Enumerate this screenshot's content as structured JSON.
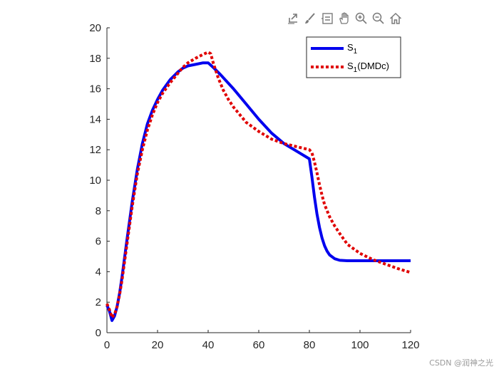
{
  "toolbar": {
    "buttons": [
      {
        "name": "export-icon"
      },
      {
        "name": "brush-icon"
      },
      {
        "name": "data-tips-icon"
      },
      {
        "name": "pan-icon"
      },
      {
        "name": "zoom-in-icon"
      },
      {
        "name": "zoom-out-icon"
      },
      {
        "name": "home-icon"
      }
    ]
  },
  "watermark": "CSDN @润神之光",
  "chart_data": {
    "type": "line",
    "title": "",
    "xlabel": "",
    "ylabel": "",
    "xlim": [
      0,
      120
    ],
    "ylim": [
      0,
      20
    ],
    "xticks": [
      "0",
      "20",
      "40",
      "60",
      "80",
      "100",
      "120"
    ],
    "yticks": [
      "0",
      "2",
      "4",
      "6",
      "8",
      "10",
      "12",
      "14",
      "16",
      "18",
      "20"
    ],
    "grid": false,
    "legend_position": "top-right",
    "series": [
      {
        "name": "S",
        "subscript": "1",
        "suffix": "",
        "color": "#0000ee",
        "style": "solid",
        "x": [
          0,
          1,
          2,
          3,
          4,
          5,
          6,
          8,
          10,
          12,
          14,
          16,
          18,
          20,
          22,
          25,
          28,
          30,
          32,
          35,
          38,
          40,
          42,
          45,
          50,
          55,
          60,
          65,
          70,
          75,
          80,
          81,
          82,
          83,
          84,
          85,
          86,
          87,
          88,
          90,
          92,
          95,
          100,
          105,
          110,
          115,
          120
        ],
        "y": [
          1.8,
          1.4,
          0.8,
          1.1,
          1.7,
          2.6,
          3.7,
          6.2,
          8.6,
          10.7,
          12.4,
          13.7,
          14.6,
          15.3,
          15.9,
          16.6,
          17.1,
          17.35,
          17.5,
          17.6,
          17.7,
          17.7,
          17.4,
          16.9,
          16.0,
          15.0,
          14.0,
          13.1,
          12.4,
          11.9,
          11.4,
          10.2,
          8.9,
          7.8,
          6.9,
          6.2,
          5.7,
          5.35,
          5.1,
          4.85,
          4.75,
          4.72,
          4.72,
          4.72,
          4.72,
          4.72,
          4.72
        ]
      },
      {
        "name": "S",
        "subscript": "1",
        "suffix": "(DMDc)",
        "color": "#e00000",
        "style": "dotted",
        "x": [
          0,
          1,
          2,
          3,
          4,
          5,
          6,
          8,
          10,
          12,
          14,
          16,
          18,
          20,
          22,
          25,
          28,
          30,
          32,
          35,
          38,
          40,
          41,
          42,
          44,
          46,
          48,
          50,
          55,
          60,
          65,
          70,
          75,
          80,
          81,
          82,
          83,
          84,
          85,
          86,
          88,
          90,
          92,
          95,
          100,
          105,
          110,
          115,
          120
        ],
        "y": [
          1.9,
          1.5,
          1.0,
          1.2,
          1.7,
          2.5,
          3.5,
          5.9,
          8.3,
          10.4,
          12.0,
          13.3,
          14.3,
          15.1,
          15.7,
          16.4,
          17.0,
          17.4,
          17.7,
          18.0,
          18.25,
          18.4,
          18.3,
          17.7,
          16.7,
          15.9,
          15.3,
          14.8,
          13.8,
          13.2,
          12.7,
          12.4,
          12.2,
          12.0,
          11.8,
          11.2,
          10.5,
          9.7,
          9.0,
          8.4,
          7.6,
          7.0,
          6.5,
          5.8,
          5.2,
          4.8,
          4.5,
          4.2,
          3.95
        ]
      }
    ]
  }
}
